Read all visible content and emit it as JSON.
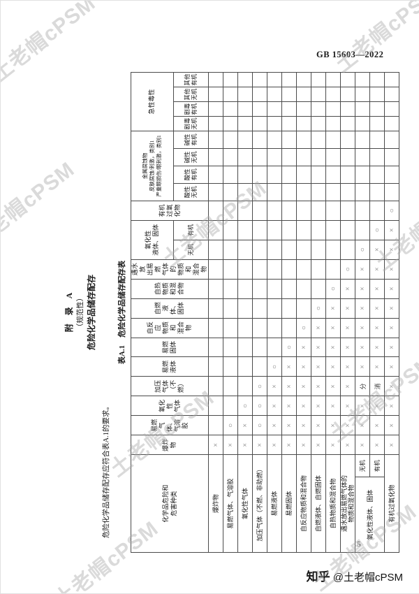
{
  "page": {
    "standard_number": "GB 15603—2022",
    "page_number": "5",
    "credit_brand": "知乎",
    "credit_handle": "@土老帽cPSM",
    "watermark_text": "土老帽cPSM"
  },
  "appendix": {
    "title": "附　录　A",
    "normative": "（规范性）",
    "subtitle": "危险化学品储存配存",
    "body_text": "危险化学品储存配存应符合表A.1的要求。",
    "table_caption": "表A.1　危险化学品储存配存表"
  },
  "table": {
    "corner_label": "化学品危险和\n危害种类",
    "col_groups": [
      {
        "label": "爆炸\n物",
        "subs": null
      },
      {
        "label": "易燃\n气体、\n气溶胶",
        "subs": null
      },
      {
        "label": "氧化性\n气体",
        "subs": null
      },
      {
        "label": "加压\n气体\n（不燃）",
        "subs": null
      },
      {
        "label": "易燃\n液体",
        "subs": null
      },
      {
        "label": "易燃\n固体",
        "subs": null
      },
      {
        "label": "自反应\n物质和\n混合物",
        "subs": null
      },
      {
        "label": "自燃\n液体、\n固体",
        "subs": null
      },
      {
        "label": "自热\n物质\n和混\n合物",
        "subs": null
      },
      {
        "label": "遇水放\n出易燃\n气体的\n物质和\n混合物",
        "subs": null
      },
      {
        "label": "氧化性\n液体、固体",
        "subs": [
          "无机",
          "有机"
        ]
      },
      {
        "label": "有机\n过氧\n化物",
        "subs": null
      },
      {
        "label": "金属腐蚀物\n皮肤腐蚀/刺激，类别1\n严重眼损伤/眼刺激，类别1",
        "subs": [
          "酸性\n无机",
          "酸性\n有机",
          "碱性\n无机",
          "碱性\n有机"
        ]
      },
      {
        "label": "急性毒性",
        "subs": [
          "剧毒\n无机",
          "剧毒\n有机",
          "其他\n无机",
          "其他\n有机"
        ]
      }
    ],
    "rows": [
      {
        "label": "爆炸物",
        "cells": [
          "×",
          "",
          "",
          "",
          "",
          "",
          "",
          "",
          "",
          "",
          "",
          "",
          "",
          "",
          "",
          "",
          "",
          "",
          "",
          "",
          ""
        ]
      },
      {
        "label": "易燃气体、气溶胶",
        "cells": [
          "×",
          "○",
          "",
          "",
          "",
          "",
          "",
          "",
          "",
          "",
          "",
          "",
          "",
          "",
          "",
          "",
          "",
          "",
          "",
          "",
          ""
        ]
      },
      {
        "label": "氧化性气体",
        "cells": [
          "×",
          "×",
          "○",
          "",
          "",
          "",
          "",
          "",
          "",
          "",
          "",
          "",
          "",
          "",
          "",
          "",
          "",
          "",
          "",
          "",
          ""
        ]
      },
      {
        "label": "加压气体（不燃、非助燃）",
        "cells": [
          "×",
          "○",
          "○",
          "○",
          "",
          "",
          "",
          "",
          "",
          "",
          "",
          "",
          "",
          "",
          "",
          "",
          "",
          "",
          "",
          "",
          ""
        ]
      },
      {
        "label": "易燃液体",
        "cells": [
          "×",
          "×",
          "×",
          "×",
          "○",
          "",
          "",
          "",
          "",
          "",
          "",
          "",
          "",
          "",
          "",
          "",
          "",
          "",
          "",
          "",
          ""
        ]
      },
      {
        "label": "易燃固体",
        "cells": [
          "×",
          "×",
          "×",
          "×",
          "×",
          "○",
          "",
          "",
          "",
          "",
          "",
          "",
          "",
          "",
          "",
          "",
          "",
          "",
          "",
          "",
          ""
        ]
      },
      {
        "label": "自反应物质和混合物",
        "cells": [
          "×",
          "×",
          "×",
          "×",
          "×",
          "×",
          "○",
          "",
          "",
          "",
          "",
          "",
          "",
          "",
          "",
          "",
          "",
          "",
          "",
          "",
          ""
        ]
      },
      {
        "label": "自燃液体、自燃固体",
        "cells": [
          "×",
          "×",
          "×",
          "×",
          "×",
          "×",
          "×",
          "○",
          "",
          "",
          "",
          "",
          "",
          "",
          "",
          "",
          "",
          "",
          "",
          "",
          ""
        ]
      },
      {
        "label": "自热物质和混合物",
        "cells": [
          "×",
          "×",
          "×",
          "×",
          "×",
          "×",
          "×",
          "×",
          "○",
          "",
          "",
          "",
          "",
          "",
          "",
          "",
          "",
          "",
          "",
          "",
          ""
        ]
      },
      {
        "label": "遇水放出易燃气体的\n物质和混合物",
        "cells": [
          "×",
          "×",
          "×",
          "×",
          "×",
          "×",
          "×",
          "×",
          "×",
          "○",
          "",
          "",
          "",
          "",
          "",
          "",
          "",
          "",
          "",
          "",
          ""
        ]
      },
      {
        "label": "氧化性液体、固体",
        "label_rowspan": 2,
        "sub": "无机",
        "cells": [
          "×",
          "×",
          "×",
          "分",
          "×",
          "×",
          "×",
          "×",
          "×",
          "×",
          "○",
          "",
          "",
          "",
          "",
          "",
          "",
          "",
          "",
          "",
          ""
        ]
      },
      {
        "sub": "有机",
        "cells": [
          "×",
          "×",
          "×",
          "消",
          "×",
          "×",
          "×",
          "×",
          "×",
          "×",
          "×",
          "○",
          "",
          "",
          "",
          "",
          "",
          "",
          "",
          "",
          ""
        ]
      },
      {
        "label": "有机过氧化物",
        "cells": [
          "×",
          "×",
          "×",
          "×",
          "×",
          "×",
          "×",
          "×",
          "×",
          "×",
          "×",
          "×",
          "○",
          "",
          "",
          "",
          "",
          "",
          "",
          "",
          ""
        ]
      }
    ]
  }
}
